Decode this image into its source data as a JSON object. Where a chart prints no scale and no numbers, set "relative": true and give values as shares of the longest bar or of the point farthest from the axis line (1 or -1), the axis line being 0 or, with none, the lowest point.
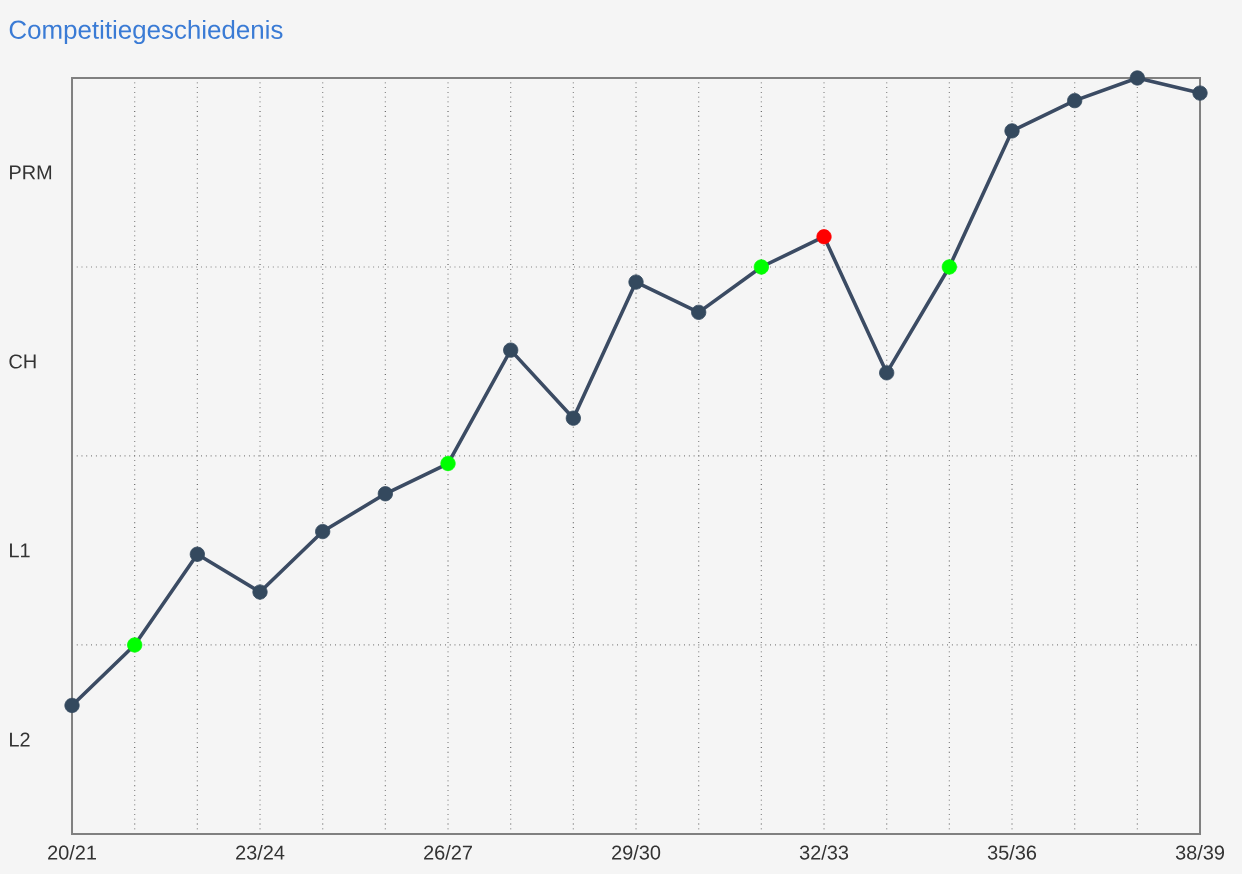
{
  "chart_data": {
    "type": "line",
    "title": "Competitiegeschiedenis",
    "categories": [
      "20/21",
      null,
      null,
      "23/24",
      null,
      null,
      "26/27",
      null,
      null,
      "29/30",
      null,
      null,
      "32/33",
      null,
      null,
      "35/36",
      null,
      null,
      "38/39"
    ],
    "series": [
      {
        "color": "#3b4b63",
        "values": [
          0.17,
          0.25,
          0.37,
          0.32,
          0.4,
          0.45,
          0.49,
          0.64,
          0.55,
          0.73,
          0.69,
          0.75,
          0.79,
          0.61,
          0.75,
          0.93,
          0.97,
          1.0,
          0.98
        ],
        "colors": [
          "#34495e",
          "#00ff00",
          "#34495e",
          "#34495e",
          "#34495e",
          "#34495e",
          "#00ff00",
          "#34495e",
          "#34495e",
          "#34495e",
          "#34495e",
          "#00ff00",
          "#ff0000",
          "#34495e",
          "#00ff00",
          "#34495e",
          "#34495e",
          "#34495e",
          "#34495e"
        ]
      }
    ],
    "relative": true,
    "annotations": [
      "PRM",
      "CH",
      "L1",
      "L2"
    ],
    "grid": true,
    "marker": "circle",
    "line_style": "solid"
  }
}
